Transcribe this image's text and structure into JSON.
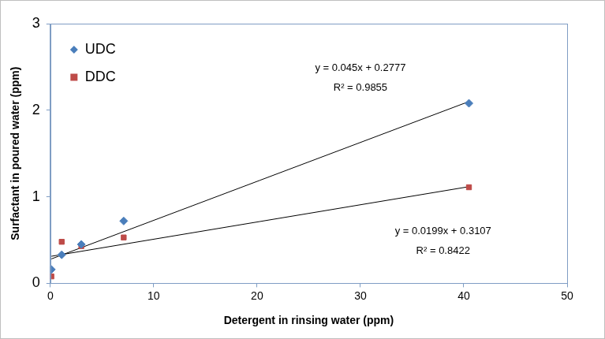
{
  "chart_data": {
    "type": "scatter",
    "x_label": "Detergent in rinsing water (ppm)",
    "y_label": "Surfactant in poured water (ppm)",
    "x": [
      0.1,
      1.1,
      3,
      7.1,
      40.5
    ],
    "series": [
      {
        "name": "UDC",
        "color": "#4a7ebb",
        "marker": "diamond",
        "values": [
          0.16,
          0.33,
          0.45,
          0.72,
          2.08
        ],
        "trendline": {
          "slope": 0.045,
          "intercept": 0.2777,
          "x": [
            0.1,
            40.5
          ],
          "color": "#000000",
          "equation": "y = 0.045x + 0.2777",
          "r2": "R² = 0.9855"
        }
      },
      {
        "name": "DDC",
        "color": "#be4b48",
        "marker": "square",
        "values": [
          0.08,
          0.48,
          0.43,
          0.53,
          1.11
        ],
        "trendline": {
          "slope": 0.0199,
          "intercept": 0.3107,
          "x": [
            0.1,
            40.5
          ],
          "color": "#000000",
          "equation": "y = 0.0199x + 0.3107",
          "r2": "R² = 0.8422"
        }
      }
    ],
    "xlim": [
      0,
      50
    ],
    "xticks": [
      0,
      10,
      20,
      30,
      40,
      50
    ],
    "ylim": [
      0,
      3
    ],
    "yticks": [
      0,
      1,
      2,
      3
    ],
    "grid": false,
    "legend": "upper left"
  }
}
